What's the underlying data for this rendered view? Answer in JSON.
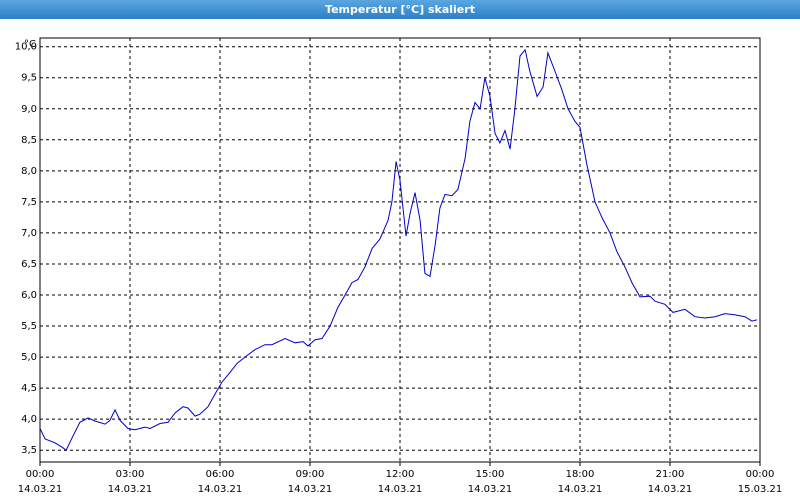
{
  "chart_data": {
    "type": "line",
    "title": "Temperatur [°C] skaliert",
    "y_unit": "°C",
    "xlim": [
      0,
      24
    ],
    "ylim": [
      3.31,
      10.14
    ],
    "grid": true,
    "xticks": [
      {
        "value": 0,
        "label": "00:00"
      },
      {
        "value": 3,
        "label": "03:00"
      },
      {
        "value": 6,
        "label": "06:00"
      },
      {
        "value": 9,
        "label": "09:00"
      },
      {
        "value": 12,
        "label": "12:00"
      },
      {
        "value": 15,
        "label": "15:00"
      },
      {
        "value": 18,
        "label": "18:00"
      },
      {
        "value": 21,
        "label": "21:00"
      },
      {
        "value": 24,
        "label": "00:00"
      }
    ],
    "xtick_dates": [
      "14.03.21",
      "14.03.21",
      "14.03.21",
      "14.03.21",
      "14.03.21",
      "14.03.21",
      "14.03.21",
      "14.03.21",
      "15.03.21"
    ],
    "yticks": [
      {
        "value": 3.5,
        "label": "3,5"
      },
      {
        "value": 4,
        "label": "4,0"
      },
      {
        "value": 4.5,
        "label": "4,5"
      },
      {
        "value": 5,
        "label": "5,0"
      },
      {
        "value": 5.5,
        "label": "5,5"
      },
      {
        "value": 6,
        "label": "6,0"
      },
      {
        "value": 6.5,
        "label": "6,5"
      },
      {
        "value": 7,
        "label": "7,0"
      },
      {
        "value": 7.5,
        "label": "7,5"
      },
      {
        "value": 8,
        "label": "8,0"
      },
      {
        "value": 8.5,
        "label": "8,5"
      },
      {
        "value": 9,
        "label": "9,0"
      },
      {
        "value": 9.5,
        "label": "9,5"
      },
      {
        "value": 10,
        "label": "10,0"
      }
    ],
    "series": [
      {
        "color": "#0000c8",
        "x": [
          0,
          0.17,
          0.5,
          0.73,
          0.87,
          1.07,
          1.33,
          1.6,
          1.83,
          2.17,
          2.33,
          2.5,
          2.67,
          2.93,
          3.17,
          3.5,
          3.67,
          4.0,
          4.27,
          4.5,
          4.77,
          4.93,
          5.17,
          5.33,
          5.6,
          5.83,
          6.07,
          6.33,
          6.57,
          6.83,
          7.17,
          7.5,
          7.73,
          8.17,
          8.5,
          8.77,
          8.93,
          9.17,
          9.4,
          9.67,
          9.93,
          10.17,
          10.4,
          10.6,
          10.83,
          11.07,
          11.33,
          11.6,
          11.73,
          11.87,
          12.0,
          12.2,
          12.33,
          12.5,
          12.67,
          12.83,
          13.0,
          13.17,
          13.33,
          13.5,
          13.73,
          13.93,
          14.17,
          14.33,
          14.5,
          14.67,
          14.83,
          15.0,
          15.17,
          15.33,
          15.5,
          15.67,
          15.83,
          16.0,
          16.17,
          16.33,
          16.57,
          16.77,
          16.93,
          17.17,
          17.4,
          17.6,
          17.83,
          18.0,
          18.23,
          18.5,
          18.73,
          19.0,
          19.23,
          19.5,
          19.73,
          20.0,
          20.33,
          20.5,
          20.83,
          21.1,
          21.5,
          21.83,
          22.17,
          22.5,
          22.83,
          23.17,
          23.5,
          23.73,
          23.9
        ],
        "values": [
          3.85,
          3.68,
          3.62,
          3.55,
          3.5,
          3.7,
          3.95,
          4.02,
          3.97,
          3.92,
          3.98,
          4.15,
          3.98,
          3.85,
          3.83,
          3.87,
          3.85,
          3.93,
          3.95,
          4.1,
          4.2,
          4.18,
          4.05,
          4.08,
          4.2,
          4.4,
          4.6,
          4.75,
          4.9,
          5.0,
          5.12,
          5.2,
          5.2,
          5.3,
          5.23,
          5.25,
          5.18,
          5.28,
          5.3,
          5.5,
          5.8,
          6.0,
          6.2,
          6.25,
          6.45,
          6.75,
          6.9,
          7.2,
          7.5,
          8.15,
          7.85,
          6.95,
          7.3,
          7.65,
          7.2,
          6.35,
          6.3,
          6.8,
          7.4,
          7.62,
          7.6,
          7.7,
          8.2,
          8.8,
          9.1,
          9.0,
          9.5,
          9.2,
          8.6,
          8.45,
          8.65,
          8.35,
          9.0,
          9.85,
          9.95,
          9.6,
          9.2,
          9.35,
          9.9,
          9.6,
          9.3,
          9.0,
          8.8,
          8.7,
          8.1,
          7.5,
          7.25,
          7.0,
          6.7,
          6.45,
          6.2,
          5.97,
          5.98,
          5.9,
          5.85,
          5.72,
          5.77,
          5.65,
          5.63,
          5.65,
          5.7,
          5.68,
          5.65,
          5.58,
          5.6
        ]
      }
    ]
  }
}
